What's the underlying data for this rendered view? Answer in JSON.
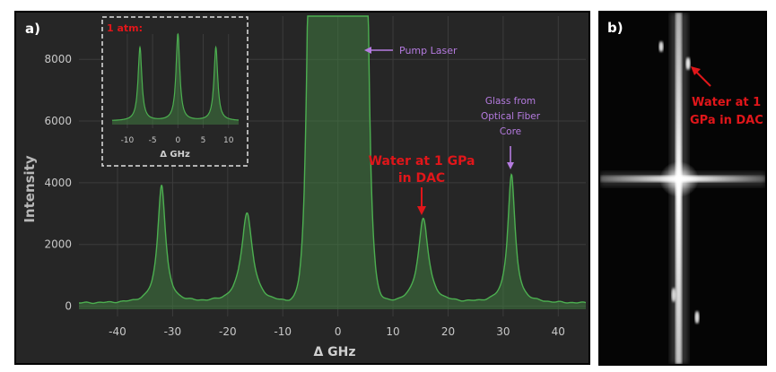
{
  "panel_a": {
    "letter": "a)",
    "annotations": {
      "pump": "Pump Laser",
      "water_line1": "Water at 1 GPa",
      "water_line2": "in DAC",
      "glass_line1": "Glass from",
      "glass_line2": "Optical Fiber",
      "glass_line3": "Core"
    },
    "inset_label": "1 atm:"
  },
  "panel_b": {
    "letter": "b)",
    "annotation_line1": "Water at 1",
    "annotation_line2": "GPa in DAC"
  },
  "colors": {
    "plot_bg": "#262626",
    "grid": "#3c3c3c",
    "trace": "#4caf50",
    "fill": "#3f7a3f",
    "axis_text": "#c8c8c8",
    "annotation_red": "#e0161a",
    "annotation_purple": "#b57be0"
  },
  "chart_data": [
    {
      "type": "line",
      "xlabel": "Δ GHz",
      "ylabel": "Intensity",
      "xlim": [
        -47,
        45
      ],
      "ylim": [
        -100,
        9400
      ],
      "x_ticks": [
        -40,
        -30,
        -20,
        -10,
        0,
        10,
        20,
        30,
        40
      ],
      "y_ticks": [
        0,
        2000,
        4000,
        6000,
        8000
      ],
      "grid": true,
      "baseline": 0,
      "peaks": [
        {
          "x": -32,
          "y": 3950
        },
        {
          "x": -16.5,
          "y": 3050
        },
        {
          "x": 0,
          "y": 9400
        },
        {
          "x": 15.5,
          "y": 2900
        },
        {
          "x": 31.5,
          "y": 4300
        }
      ]
    },
    {
      "type": "line",
      "inset": true,
      "xlabel": "Δ GHz",
      "xlim": [
        -13,
        12
      ],
      "x_ticks": [
        -10,
        -5,
        0,
        5,
        10
      ],
      "peaks": [
        {
          "x": -7.5,
          "y": 0.85
        },
        {
          "x": 0,
          "y": 1.0
        },
        {
          "x": 7.5,
          "y": 0.85
        }
      ]
    }
  ]
}
